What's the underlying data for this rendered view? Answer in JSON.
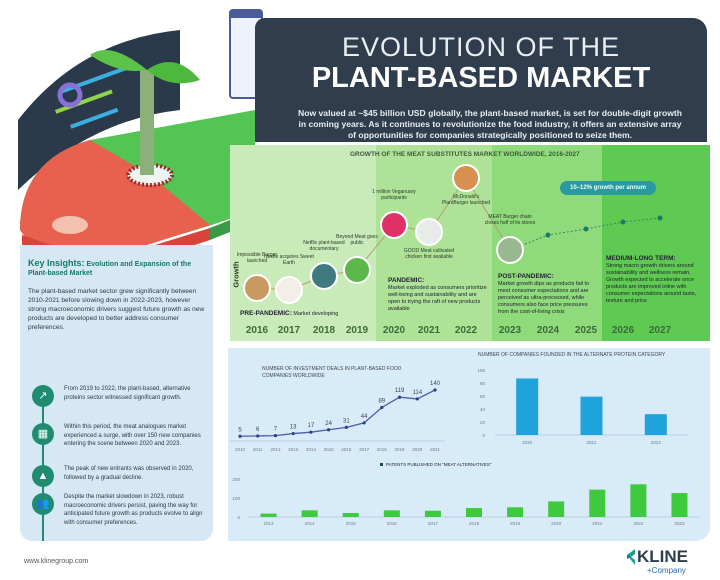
{
  "header": {
    "title_line1": "EVOLUTION OF THE",
    "title_line2": "PLANT-BASED MARKET",
    "intro": "Now valued at ~$45 billion USD globally, the plant-based market, is set for double-digit growth in coming years. As it continues to revolutionize the food industry, it offers an extensive array of opportunities for companies strategically positioned to seize them."
  },
  "timeline": {
    "title": "GROWTH OF THE MEAT SUBSTITUTES MARKET WORLDWIDE, 2016-2027",
    "y_label": "Growth",
    "years": [
      "2016",
      "2017",
      "2018",
      "2019",
      "2020",
      "2021",
      "2022",
      "2023",
      "2024",
      "2025",
      "2026",
      "2027"
    ],
    "growth_pill": "10–12% growth per annum",
    "events": [
      {
        "year": "2016",
        "label": "Impossible Burger launched",
        "color": "#c89a60"
      },
      {
        "year": "2017",
        "label": "Nestle acquires Sweet Earth",
        "color": "#f4eeea"
      },
      {
        "year": "2018",
        "label": "Netflix plant-based documentary",
        "color": "#3e7a80"
      },
      {
        "year": "2019",
        "label": "Beyond Meat goes public",
        "color": "#5cb84a"
      },
      {
        "year": "2020",
        "label": "1 million Veganuary participants",
        "color": "#e0306a"
      },
      {
        "year": "2021",
        "label": "GOOD Meat cultivated chicken first available",
        "color": "#e8ece8"
      },
      {
        "year": "2022",
        "label": "McDonald's PlantBurger launched",
        "color": "#d89050"
      },
      {
        "year": "2023",
        "label": "MEAT Burger chain closes half of its stores",
        "color": "#9ab890"
      }
    ],
    "phases": [
      {
        "name": "PRE-PANDEMIC:",
        "text": "Market developing",
        "color": "#c9ebb9"
      },
      {
        "name": "PANDEMIC:",
        "text": "Market exploded as consumers prioritize well-being and sustainability and are open to trying the raft of new products available",
        "color": "#aee397"
      },
      {
        "name": "POST-PANDEMIC:",
        "text": "Market growth dips as products fail to meet consumer expectations and are perceived as ultra-processed, while consumers also face price pressures from the cost-of-living crisis",
        "color": "#8fda7b"
      },
      {
        "name": "MEDIUM-LONG TERM:",
        "text": "Strong macro growth drivers around sustainability and wellness remain. Growth expected to accelerate once products are improved inline with consumer expectations around taste, texture and price",
        "color": "#5fca52"
      }
    ]
  },
  "insights": {
    "title_strong": "Key Insights:",
    "title_rest": "Evolution and Expansion of the Plant-based Market",
    "body": "The plant-based market sector grew significantly between 2010-2021 before slowing down in 2022-2023, however strong macroeconomic drivers suggest future growth as new products are developed to better address consumer preferences.",
    "bullets": [
      {
        "icon": "chart-growth-icon",
        "glyph": "↗",
        "text": "From 2019 to 2022, the plant-based, alternative proteins sector witnessed significant growth."
      },
      {
        "icon": "factory-icon",
        "glyph": "▦",
        "text": "Within this period, the meat analogues market experienced a surge, with over 150 new companies entering the scene between 2020 and 2023."
      },
      {
        "icon": "mountain-peak-icon",
        "glyph": "▲",
        "text": "The peak of new entrants was observed in 2020, followed by a gradual decline."
      },
      {
        "icon": "people-group-icon",
        "glyph": "👥",
        "text": "Despite the market slowdown in 2023, robust macroeconomic drivers persist, paving the way for anticipated future growth as products evolve to align with consumer preferences."
      }
    ]
  },
  "colors": {
    "header": "#2f3d4c",
    "accent_teal": "#1f8c72",
    "bar_blue": "#1fa3dc",
    "bar_green": "#3ec93e",
    "line": "#4a5fa8"
  },
  "chart_data": [
    {
      "type": "line",
      "title": "NUMBER OF INVESTMENT DEALS IN PLANT-BASED FOOD COMPANIES WORLDWIDE",
      "x": [
        "2010",
        "2011",
        "2012",
        "2013",
        "2014",
        "2015",
        "2016",
        "2017",
        "2018",
        "2019",
        "2020",
        "2021"
      ],
      "values": [
        5,
        6,
        7,
        13,
        17,
        24,
        31,
        44,
        89,
        119,
        114,
        140
      ],
      "data_labels": true,
      "grid": false
    },
    {
      "type": "bar",
      "title": "NUMBER OF COMPANIES FOUNDED IN THE ALTERNATE PROTEIN CATEGORY",
      "categories": [
        "2020",
        "2021",
        "2022"
      ],
      "values": [
        87,
        59,
        32
      ],
      "ylim": [
        0,
        100
      ],
      "yticks": [
        "0",
        "20",
        "40",
        "60",
        "80",
        "100"
      ],
      "grid": false
    },
    {
      "type": "bar",
      "legend": "PATENTS PUBLISHED ON \"MEAT ALTERNATIVES\"",
      "legend_position": "top",
      "categories": [
        "2013",
        "2014",
        "2015",
        "2016",
        "2017",
        "2018",
        "2019",
        "2020",
        "2021",
        "2022",
        "2023"
      ],
      "values": [
        18,
        35,
        21,
        35,
        33,
        47,
        51,
        82,
        144,
        172,
        126
      ],
      "ylim": [
        0,
        200
      ],
      "yticks": [
        "0",
        "100",
        "200"
      ],
      "grid": false
    }
  ],
  "footer": {
    "url": "www.klinegroup.com",
    "logo_text": "KLINE",
    "logo_sub": "+Company"
  }
}
